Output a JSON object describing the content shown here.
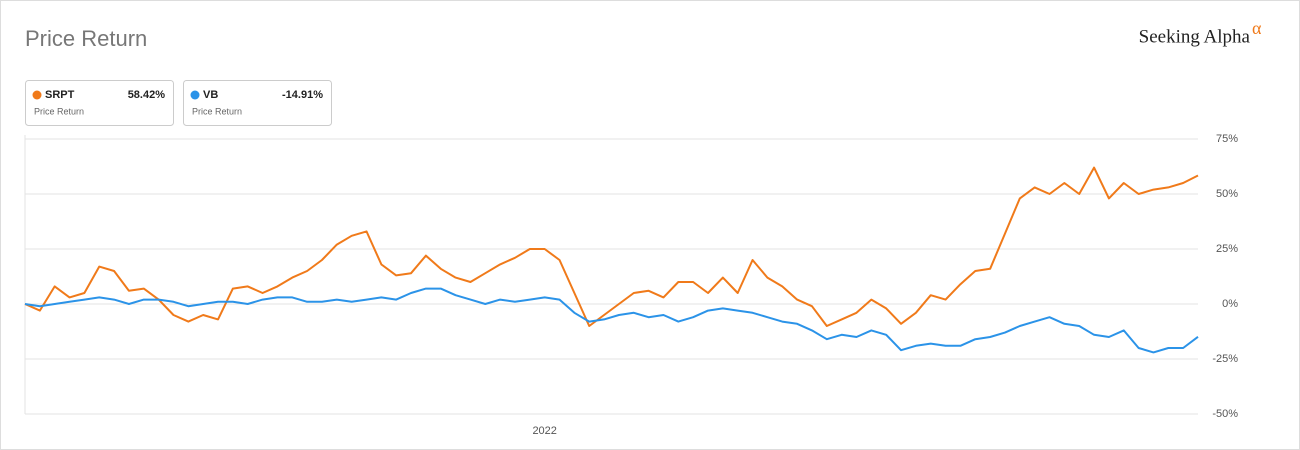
{
  "chart_data": {
    "type": "line",
    "title": "Price Return",
    "logo": "Seeking Alpha",
    "logo_mark": "α",
    "categories": [
      null,
      null,
      null,
      null,
      null,
      null,
      null,
      null,
      null,
      null,
      null,
      null,
      null,
      null,
      null,
      null,
      null,
      null,
      null,
      null,
      null,
      null,
      null,
      null,
      null,
      null,
      null,
      null,
      null,
      null,
      null,
      null,
      null,
      null,
      null,
      "2022",
      null,
      null,
      null,
      null,
      null,
      null,
      null,
      null,
      null,
      null,
      null,
      null,
      null,
      null,
      null,
      null,
      null,
      null,
      null,
      null,
      null,
      null,
      null,
      null,
      null,
      null,
      null,
      null,
      null,
      null,
      null,
      null,
      null,
      null,
      null,
      null,
      null,
      null,
      null,
      null,
      null,
      null,
      null,
      null
    ],
    "series": [
      {
        "name": "SRPT",
        "color": "#f07a1a",
        "legend_value": "58.42%",
        "legend_subtitle": "Price Return",
        "values": [
          0,
          -3,
          8,
          3,
          5,
          17,
          15,
          6,
          7,
          2,
          -5,
          -8,
          -5,
          -7,
          7,
          8,
          5,
          8,
          12,
          15,
          20,
          27,
          31,
          33,
          18,
          13,
          14,
          22,
          16,
          12,
          10,
          14,
          18,
          21,
          25,
          25,
          20,
          5,
          -10,
          -5,
          0,
          5,
          6,
          3,
          10,
          10,
          5,
          12,
          5,
          20,
          12,
          8,
          2,
          -1,
          -10,
          -7,
          -4,
          2,
          -2,
          -9,
          -4,
          4,
          2,
          9,
          15,
          16,
          32,
          48,
          53,
          50,
          55,
          50,
          62,
          48,
          55,
          50,
          52,
          53,
          55,
          58.42
        ]
      },
      {
        "name": "VB",
        "color": "#2b93e8",
        "legend_value": "-14.91%",
        "legend_subtitle": "Price Return",
        "values": [
          0,
          -1,
          0,
          1,
          2,
          3,
          2,
          0,
          2,
          2,
          1,
          -1,
          0,
          1,
          1,
          0,
          2,
          3,
          3,
          1,
          1,
          2,
          1,
          2,
          3,
          2,
          5,
          7,
          7,
          4,
          2,
          0,
          2,
          1,
          2,
          3,
          2,
          -4,
          -8,
          -7,
          -5,
          -4,
          -6,
          -5,
          -8,
          -6,
          -3,
          -2,
          -3,
          -4,
          -6,
          -8,
          -9,
          -12,
          -16,
          -14,
          -15,
          -12,
          -14,
          -21,
          -19,
          -18,
          -19,
          -19,
          -16,
          -15,
          -13,
          -10,
          -8,
          -6,
          -9,
          -10,
          -14,
          -15,
          -12,
          -20,
          -22,
          -20,
          -20,
          -14.91
        ]
      }
    ],
    "ylim": [
      -50,
      75
    ],
    "yticks": [
      {
        "value": -50,
        "label": "-50%"
      },
      {
        "value": -25,
        "label": "-25%"
      },
      {
        "value": 0,
        "label": "0%"
      },
      {
        "value": 25,
        "label": "25%"
      },
      {
        "value": 50,
        "label": "50%"
      },
      {
        "value": 75,
        "label": "75%"
      }
    ],
    "grid": true
  }
}
